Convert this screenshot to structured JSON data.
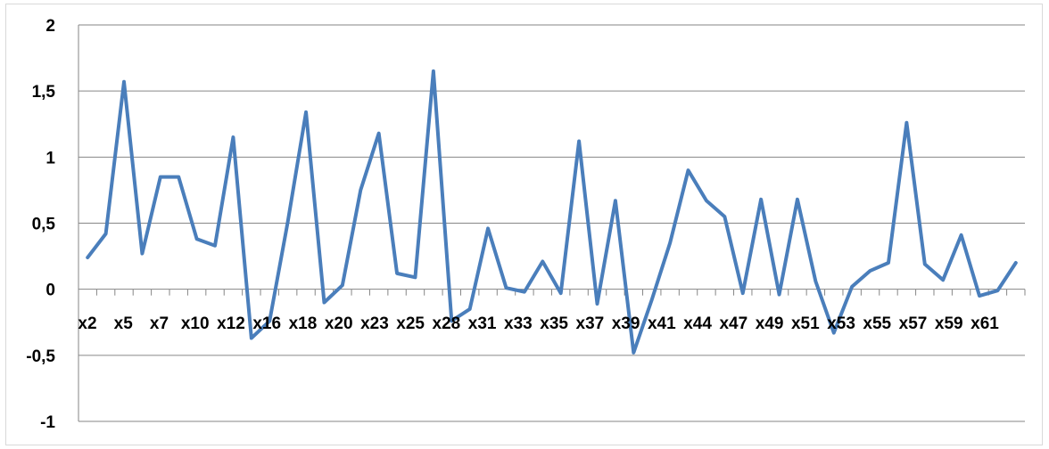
{
  "chart_data": {
    "type": "line",
    "title": "",
    "xlabel": "",
    "ylabel": "",
    "ylim": [
      -1,
      2
    ],
    "y_ticks": [
      "2",
      "1,5",
      "1",
      "0,5",
      "0",
      "-0,5",
      "-1"
    ],
    "y_tick_values": [
      2,
      1.5,
      1,
      0.5,
      0,
      -0.5,
      -1
    ],
    "grid": true,
    "legend": "none",
    "x_tick_labels": [
      "x2",
      "x5",
      "x7",
      "x10",
      "x12",
      "x16",
      "x18",
      "x20",
      "x23",
      "x25",
      "x28",
      "x31",
      "x33",
      "x35",
      "x37",
      "x39",
      "x41",
      "x44",
      "x47",
      "x49",
      "x51",
      "x53",
      "x55",
      "x57",
      "x59",
      "x61"
    ],
    "series": [
      {
        "color": "#4a7ebb",
        "values": [
          0.24,
          0.42,
          1.57,
          0.27,
          0.85,
          0.85,
          0.38,
          0.33,
          1.15,
          -0.37,
          -0.24,
          0.51,
          1.34,
          -0.1,
          0.03,
          0.75,
          1.18,
          0.12,
          0.09,
          1.65,
          -0.24,
          -0.15,
          0.46,
          0.01,
          -0.02,
          0.21,
          -0.03,
          1.12,
          -0.11,
          0.67,
          -0.48,
          -0.08,
          0.35,
          0.9,
          0.67,
          0.55,
          -0.03,
          0.68,
          -0.04,
          0.68,
          0.06,
          -0.33,
          0.02,
          0.14,
          0.2,
          1.26,
          0.19,
          0.07,
          0.41,
          -0.05,
          -0.01,
          0.2
        ]
      }
    ]
  }
}
